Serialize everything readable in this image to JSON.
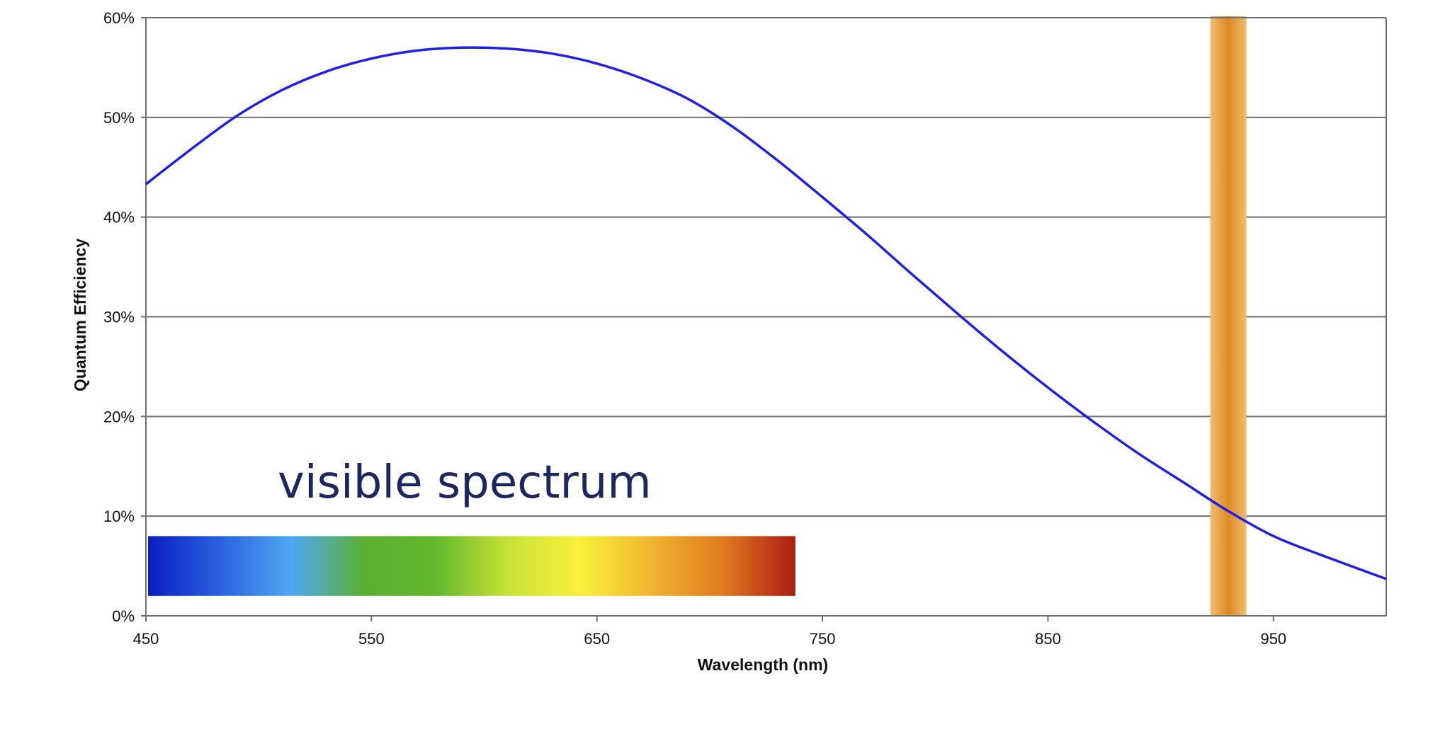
{
  "chart_data": {
    "type": "line",
    "xlabel": "Wavelength (nm)",
    "ylabel": "Quantum Efficiency",
    "xlim": [
      450,
      1000
    ],
    "ylim": [
      0,
      60
    ],
    "x_ticks": [
      450,
      550,
      650,
      750,
      850,
      950
    ],
    "x_tick_labels": [
      "450",
      "550",
      "650",
      "750",
      "850",
      "950"
    ],
    "y_ticks": [
      0,
      10,
      20,
      30,
      40,
      50,
      60
    ],
    "y_tick_labels": [
      "0%",
      "10%",
      "20%",
      "30%",
      "40%",
      "50%",
      "60%"
    ],
    "grid": "horizontal",
    "series": [
      {
        "color": "#1f1fe8",
        "x": [
          450,
          470,
          490,
          510,
          530,
          550,
          570,
          590,
          610,
          630,
          650,
          670,
          690,
          710,
          730,
          750,
          770,
          790,
          810,
          830,
          850,
          870,
          890,
          910,
          930,
          950,
          970,
          1000
        ],
        "y": [
          43.3,
          46.8,
          50.1,
          52.7,
          54.6,
          55.9,
          56.7,
          57.0,
          56.9,
          56.4,
          55.4,
          53.9,
          51.9,
          49.1,
          45.7,
          42.0,
          38.2,
          34.2,
          30.3,
          26.5,
          22.9,
          19.5,
          16.3,
          13.4,
          10.5,
          8.0,
          6.2,
          3.7
        ]
      }
    ],
    "annotations": [
      {
        "text": "visible spectrum",
        "color": "#1c2760",
        "band": {
          "x_start": 450,
          "x_end": 738,
          "y_bottom": 2,
          "y_top": 8,
          "gradient": [
            "#0a1ebf",
            "#2a62e0",
            "#4fa8f2",
            "#5bb033",
            "#63b82c",
            "#c8e237",
            "#faf03a",
            "#f0b531",
            "#e07a20",
            "#ad1d12"
          ]
        }
      },
      {
        "highlight_band": {
          "x_start": 922,
          "x_end": 938,
          "colors": [
            "#f0bd70",
            "#dd8a24",
            "#f0bd70"
          ]
        }
      }
    ]
  }
}
